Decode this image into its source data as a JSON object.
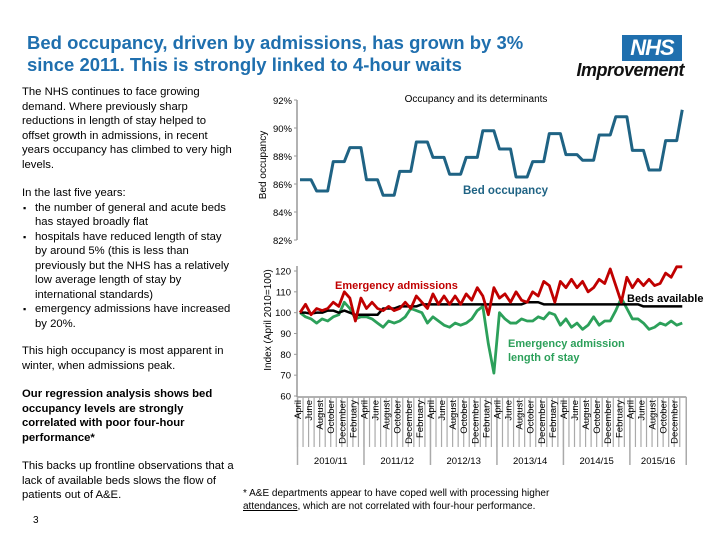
{
  "header": {
    "title": "Bed occupancy, driven by admissions, has grown by 3% since 2011. This is strongly linked to 4-hour waits",
    "logo_top": "NHS",
    "logo_bottom": "Improvement",
    "brand_color": "#1f6fae"
  },
  "left_text": {
    "intro": "The NHS continues to face growing demand. Where previously sharp reductions in length of stay helped to offset growth in admissions, in recent years occupancy has climbed to very high levels.",
    "list_heading": "In the last five years:",
    "bullets": [
      "the number of general and acute beds has stayed broadly flat",
      "hospitals have reduced length of stay by around 5% (this is less than previously but the NHS has a relatively low average length of stay by international standards)",
      "emergency admissions have increased by 20%."
    ],
    "winter": "This high occupancy is most apparent in winter, when admissions peak.",
    "regression": "Our regression analysis shows bed occupancy levels are strongly correlated with poor four-hour performance*",
    "frontline": "This backs up frontline observations that a lack of available beds slows the flow of patients out of A&E.",
    "page_number": "3"
  },
  "footnote": {
    "prefix": "* A&E departments appear to have coped well with processing higher ",
    "underlined": "attendances",
    "suffix": ", which are not correlated with four-hour performance."
  },
  "chart_data": [
    {
      "type": "line",
      "title": "Occupancy and its determinants",
      "ylabel": "Bed occupancy",
      "ylim": [
        82,
        92
      ],
      "yticks": [
        "82%",
        "84%",
        "86%",
        "88%",
        "90%",
        "92%"
      ],
      "ytick_values": [
        82,
        84,
        86,
        88,
        90,
        92
      ],
      "grid": false,
      "x_granularity": "quarterly, April 2010 to January 2016",
      "series": [
        {
          "name": "Bed occupancy",
          "color": "#1f6384",
          "values": [
            86.3,
            85.5,
            87.6,
            88.6,
            86.3,
            85.2,
            86.9,
            89.0,
            87.9,
            86.7,
            87.9,
            89.8,
            88.5,
            86.5,
            87.6,
            89.6,
            88.1,
            87.7,
            89.5,
            90.8,
            88.4,
            87.0,
            89.1,
            91.3
          ]
        }
      ]
    },
    {
      "type": "line",
      "ylabel": "Index (April 2010=100)",
      "ylim": [
        60,
        120
      ],
      "yticks": [
        "60",
        "70",
        "80",
        "90",
        "100",
        "110",
        "120"
      ],
      "ytick_values": [
        60,
        70,
        80,
        90,
        100,
        110,
        120
      ],
      "grid": false,
      "years": [
        "2010/11",
        "2011/12",
        "2012/13",
        "2013/14",
        "2014/15",
        "2015/16"
      ],
      "month_labels": [
        "April",
        "June",
        "August",
        "October",
        "December",
        "February"
      ],
      "months_in_last_year": 10,
      "series": [
        {
          "name": "Emergency admissions",
          "color": "#c00000",
          "values": [
            100,
            104,
            99,
            102,
            101,
            102,
            105,
            103,
            110,
            107,
            96,
            107,
            102,
            105,
            102,
            101,
            103,
            101,
            102,
            105,
            102,
            108,
            105,
            102,
            109,
            104,
            108,
            104,
            108,
            104,
            109,
            106,
            112,
            108,
            99,
            112,
            107,
            109,
            105,
            110,
            106,
            105,
            110,
            108,
            115,
            113,
            105,
            115,
            112,
            116,
            112,
            115,
            110,
            112,
            116,
            114,
            121,
            113,
            105,
            117,
            112,
            116,
            113,
            116,
            113,
            114,
            119,
            117,
            122,
            122
          ]
        },
        {
          "name": "Beds available",
          "color": "#000000",
          "values": [
            100,
            100,
            99.5,
            100,
            100,
            101,
            101,
            100,
            101,
            100,
            99,
            99,
            99,
            99,
            99,
            102,
            102,
            102,
            103,
            103,
            103,
            103,
            104,
            104,
            104,
            104,
            104,
            104,
            104,
            104,
            104,
            104,
            104,
            104,
            104,
            104,
            104,
            104,
            104,
            104,
            104,
            105,
            105,
            105,
            104,
            104,
            104,
            104,
            104,
            104,
            104,
            104,
            104,
            104,
            104,
            104,
            104,
            104,
            104,
            104,
            104,
            104,
            103,
            103,
            103,
            103,
            103,
            103,
            103,
            103
          ]
        },
        {
          "name": "Emergency admission length of stay",
          "label_lines": [
            "Emergency admission",
            "length of stay"
          ],
          "color": "#2ca05a",
          "values": [
            100,
            98,
            97,
            95,
            97,
            96,
            98,
            99,
            105,
            102,
            97,
            98,
            98,
            97,
            95,
            93,
            96,
            95,
            96,
            98,
            102,
            101,
            100,
            95,
            98,
            96,
            94,
            93,
            95,
            94,
            95,
            97,
            101,
            103,
            85,
            71,
            100,
            97,
            95,
            95,
            97,
            96,
            96,
            98,
            97,
            100,
            99,
            94,
            97,
            93,
            95,
            92,
            94,
            98,
            94,
            96,
            96,
            101,
            107,
            102,
            97,
            97,
            95,
            92,
            93,
            95,
            94,
            96,
            94,
            95
          ]
        }
      ]
    }
  ]
}
